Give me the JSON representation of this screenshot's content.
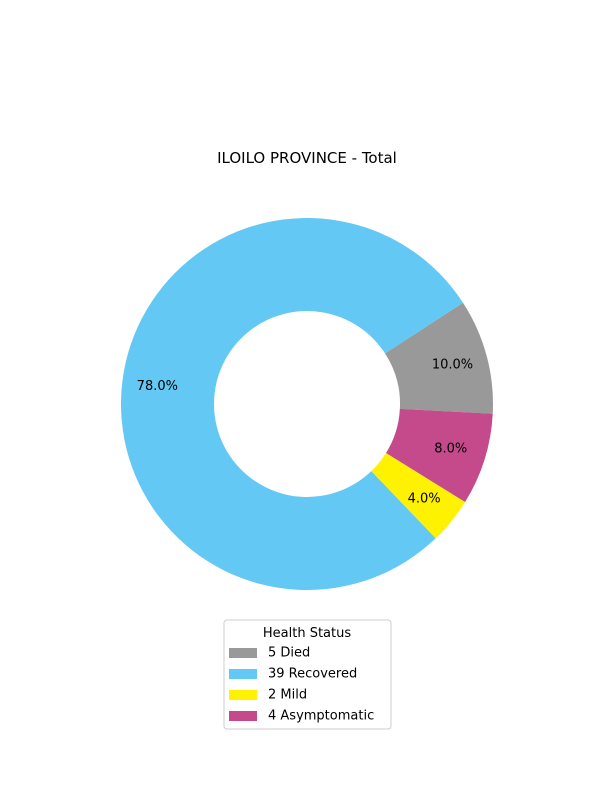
{
  "chart_data": {
    "type": "pie",
    "variant": "donut",
    "title": "ILOILO PROVINCE - Total",
    "legend": {
      "title": "Health Status",
      "placement": "bottom-center"
    },
    "slices": [
      {
        "label": "Died",
        "count_label": "5",
        "value": 5,
        "percent_label": "10.0%",
        "color": "#999999"
      },
      {
        "label": "Recovered",
        "count_label": "39",
        "value": 39,
        "percent_label": "78.0%",
        "color": "#63c8f3"
      },
      {
        "label": "Mild",
        "count_label": "2",
        "value": 2,
        "percent_label": "4.0%",
        "color": "#fff200"
      },
      {
        "label": "Asymptomatic",
        "count_label": "4",
        "value": 4,
        "percent_label": "8.0%",
        "color": "#c44a8c"
      }
    ],
    "wedge_order": [
      "Died",
      "Recovered",
      "Mild",
      "Asymptomatic"
    ],
    "direction": "counterclockwise",
    "start_angle_deg": -3
  }
}
